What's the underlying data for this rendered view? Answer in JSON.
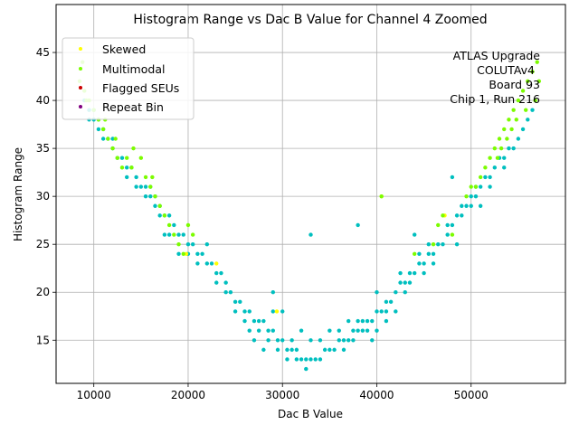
{
  "chart_data": {
    "type": "scatter",
    "title": "Histogram Range vs Dac B Value for Channel 4 Zoomed",
    "xlabel": "Dac B Value",
    "ylabel": "Histogram Range",
    "xlim": [
      6000,
      60000
    ],
    "ylim": [
      10.5,
      50
    ],
    "xticks": [
      10000,
      20000,
      30000,
      40000,
      50000
    ],
    "yticks": [
      15,
      20,
      25,
      30,
      35,
      40,
      45
    ],
    "grid": true,
    "legend_position": "top-left",
    "annotation": [
      "ATLAS Upgrade",
      "COLUTAv4",
      "Board 93",
      "Chip 1, Run 216"
    ],
    "series": [
      {
        "name": "Skewed",
        "color": "#ffff00",
        "points": [
          [
            29400,
            18
          ],
          [
            40500,
            30
          ],
          [
            19800,
            24
          ],
          [
            23000,
            23
          ],
          [
            47200,
            28
          ]
        ]
      },
      {
        "name": "Multimodal",
        "color": "#7cfc00",
        "points": [
          [
            8500,
            42
          ],
          [
            9000,
            41
          ],
          [
            9500,
            40
          ],
          [
            10000,
            39
          ],
          [
            10500,
            38
          ],
          [
            11000,
            37
          ],
          [
            11500,
            36
          ],
          [
            12000,
            35
          ],
          [
            12500,
            34
          ],
          [
            13000,
            33
          ],
          [
            13500,
            34
          ],
          [
            14000,
            33
          ],
          [
            15000,
            34
          ],
          [
            15500,
            32
          ],
          [
            16000,
            31
          ],
          [
            16500,
            30
          ],
          [
            17000,
            29
          ],
          [
            17500,
            28
          ],
          [
            18000,
            27
          ],
          [
            18500,
            26
          ],
          [
            19000,
            25
          ],
          [
            19500,
            24
          ],
          [
            20000,
            27
          ],
          [
            20500,
            26
          ],
          [
            9200,
            40
          ],
          [
            8800,
            44
          ],
          [
            11200,
            38
          ],
          [
            12300,
            36
          ],
          [
            14200,
            35
          ],
          [
            16200,
            32
          ],
          [
            50500,
            31
          ],
          [
            51000,
            32
          ],
          [
            51500,
            33
          ],
          [
            52000,
            34
          ],
          [
            52500,
            35
          ],
          [
            53000,
            36
          ],
          [
            53500,
            37
          ],
          [
            54000,
            38
          ],
          [
            54500,
            39
          ],
          [
            55000,
            40
          ],
          [
            55500,
            41
          ],
          [
            56000,
            42
          ],
          [
            56500,
            43
          ],
          [
            57000,
            44
          ],
          [
            57200,
            42
          ],
          [
            56800,
            40
          ],
          [
            55800,
            39
          ],
          [
            54800,
            38
          ],
          [
            53800,
            36
          ],
          [
            52800,
            34
          ],
          [
            47000,
            28
          ],
          [
            46500,
            27
          ],
          [
            48000,
            26
          ],
          [
            40500,
            30
          ],
          [
            44000,
            24
          ],
          [
            46000,
            25
          ],
          [
            49500,
            30
          ],
          [
            50000,
            31
          ],
          [
            53200,
            35
          ],
          [
            54300,
            37
          ]
        ]
      },
      {
        "name": "Flagged SEUs",
        "color": "#cc0000",
        "points": []
      },
      {
        "name": "Repeat Bin",
        "color": "#800080",
        "points": []
      }
    ],
    "main_series": {
      "color": "#00bfbf",
      "points": [
        [
          9000,
          40
        ],
        [
          9500,
          39
        ],
        [
          10000,
          38
        ],
        [
          10500,
          38
        ],
        [
          11000,
          37
        ],
        [
          11500,
          36
        ],
        [
          12000,
          35
        ],
        [
          12500,
          34
        ],
        [
          13000,
          34
        ],
        [
          13500,
          33
        ],
        [
          14000,
          33
        ],
        [
          14500,
          32
        ],
        [
          15000,
          31
        ],
        [
          15500,
          31
        ],
        [
          16000,
          30
        ],
        [
          16500,
          30
        ],
        [
          17000,
          29
        ],
        [
          17500,
          28
        ],
        [
          18000,
          28
        ],
        [
          18500,
          27
        ],
        [
          19000,
          26
        ],
        [
          19500,
          26
        ],
        [
          20000,
          25
        ],
        [
          20500,
          25
        ],
        [
          21000,
          24
        ],
        [
          21500,
          24
        ],
        [
          22000,
          23
        ],
        [
          22500,
          23
        ],
        [
          23000,
          22
        ],
        [
          23500,
          22
        ],
        [
          24000,
          21
        ],
        [
          24500,
          20
        ],
        [
          25000,
          19
        ],
        [
          25500,
          19
        ],
        [
          26000,
          18
        ],
        [
          26500,
          18
        ],
        [
          27000,
          17
        ],
        [
          27500,
          17
        ],
        [
          28000,
          17
        ],
        [
          28500,
          16
        ],
        [
          29000,
          16
        ],
        [
          29500,
          15
        ],
        [
          30000,
          15
        ],
        [
          30500,
          14
        ],
        [
          31000,
          14
        ],
        [
          31500,
          14
        ],
        [
          32000,
          13
        ],
        [
          32500,
          13
        ],
        [
          33000,
          13
        ],
        [
          33500,
          13
        ],
        [
          34000,
          13
        ],
        [
          34500,
          14
        ],
        [
          35000,
          14
        ],
        [
          35500,
          14
        ],
        [
          36000,
          15
        ],
        [
          36500,
          15
        ],
        [
          37000,
          15
        ],
        [
          37500,
          16
        ],
        [
          38000,
          16
        ],
        [
          38500,
          17
        ],
        [
          39000,
          17
        ],
        [
          39500,
          17
        ],
        [
          40000,
          18
        ],
        [
          40500,
          18
        ],
        [
          41000,
          19
        ],
        [
          41500,
          19
        ],
        [
          42000,
          20
        ],
        [
          42500,
          21
        ],
        [
          43000,
          21
        ],
        [
          43500,
          22
        ],
        [
          44000,
          22
        ],
        [
          44500,
          23
        ],
        [
          45000,
          23
        ],
        [
          45500,
          24
        ],
        [
          46000,
          24
        ],
        [
          46500,
          25
        ],
        [
          47000,
          25
        ],
        [
          47500,
          26
        ],
        [
          48000,
          27
        ],
        [
          48500,
          28
        ],
        [
          49000,
          28
        ],
        [
          49500,
          29
        ],
        [
          50000,
          30
        ],
        [
          50500,
          30
        ],
        [
          51000,
          31
        ],
        [
          51500,
          32
        ],
        [
          52000,
          32
        ],
        [
          52500,
          33
        ],
        [
          53000,
          34
        ],
        [
          53500,
          34
        ],
        [
          54000,
          35
        ],
        [
          54500,
          35
        ],
        [
          55000,
          36
        ],
        [
          55500,
          37
        ],
        [
          56000,
          38
        ],
        [
          56500,
          39
        ],
        [
          26500,
          16
        ],
        [
          27500,
          16
        ],
        [
          28500,
          15
        ],
        [
          29500,
          14
        ],
        [
          30500,
          13
        ],
        [
          31500,
          13
        ],
        [
          32500,
          12
        ],
        [
          33000,
          15
        ],
        [
          34000,
          15
        ],
        [
          35000,
          16
        ],
        [
          36000,
          16
        ],
        [
          37000,
          17
        ],
        [
          38000,
          17
        ],
        [
          38000,
          27
        ],
        [
          33000,
          26
        ],
        [
          29000,
          20
        ],
        [
          39500,
          15
        ],
        [
          40000,
          20
        ],
        [
          41000,
          17
        ],
        [
          42000,
          18
        ],
        [
          43000,
          20
        ],
        [
          44000,
          26
        ],
        [
          45000,
          22
        ],
        [
          46000,
          23
        ],
        [
          48000,
          32
        ],
        [
          49000,
          29
        ],
        [
          50500,
          31
        ],
        [
          51000,
          29
        ],
        [
          52000,
          31
        ],
        [
          53500,
          33
        ],
        [
          22000,
          25
        ],
        [
          21000,
          23
        ],
        [
          20000,
          24
        ],
        [
          19000,
          24
        ],
        [
          18000,
          26
        ],
        [
          17500,
          26
        ],
        [
          16500,
          29
        ],
        [
          15500,
          30
        ],
        [
          14500,
          31
        ],
        [
          13500,
          32
        ],
        [
          23000,
          21
        ],
        [
          24000,
          20
        ],
        [
          25000,
          18
        ],
        [
          26000,
          17
        ],
        [
          27000,
          15
        ],
        [
          28000,
          14
        ],
        [
          29000,
          18
        ],
        [
          30000,
          18
        ],
        [
          31000,
          15
        ],
        [
          32000,
          16
        ],
        [
          36500,
          14
        ],
        [
          37500,
          15
        ],
        [
          38500,
          16
        ],
        [
          39000,
          16
        ],
        [
          40000,
          16
        ],
        [
          41000,
          18
        ],
        [
          42500,
          22
        ],
        [
          43500,
          21
        ],
        [
          44500,
          24
        ],
        [
          45500,
          25
        ],
        [
          47500,
          27
        ],
        [
          48500,
          25
        ],
        [
          50000,
          29
        ],
        [
          12000,
          36
        ],
        [
          11000,
          36
        ],
        [
          10500,
          37
        ],
        [
          10000,
          39
        ],
        [
          9500,
          38
        ],
        [
          16000,
          31
        ],
        [
          17000,
          28
        ]
      ]
    }
  }
}
